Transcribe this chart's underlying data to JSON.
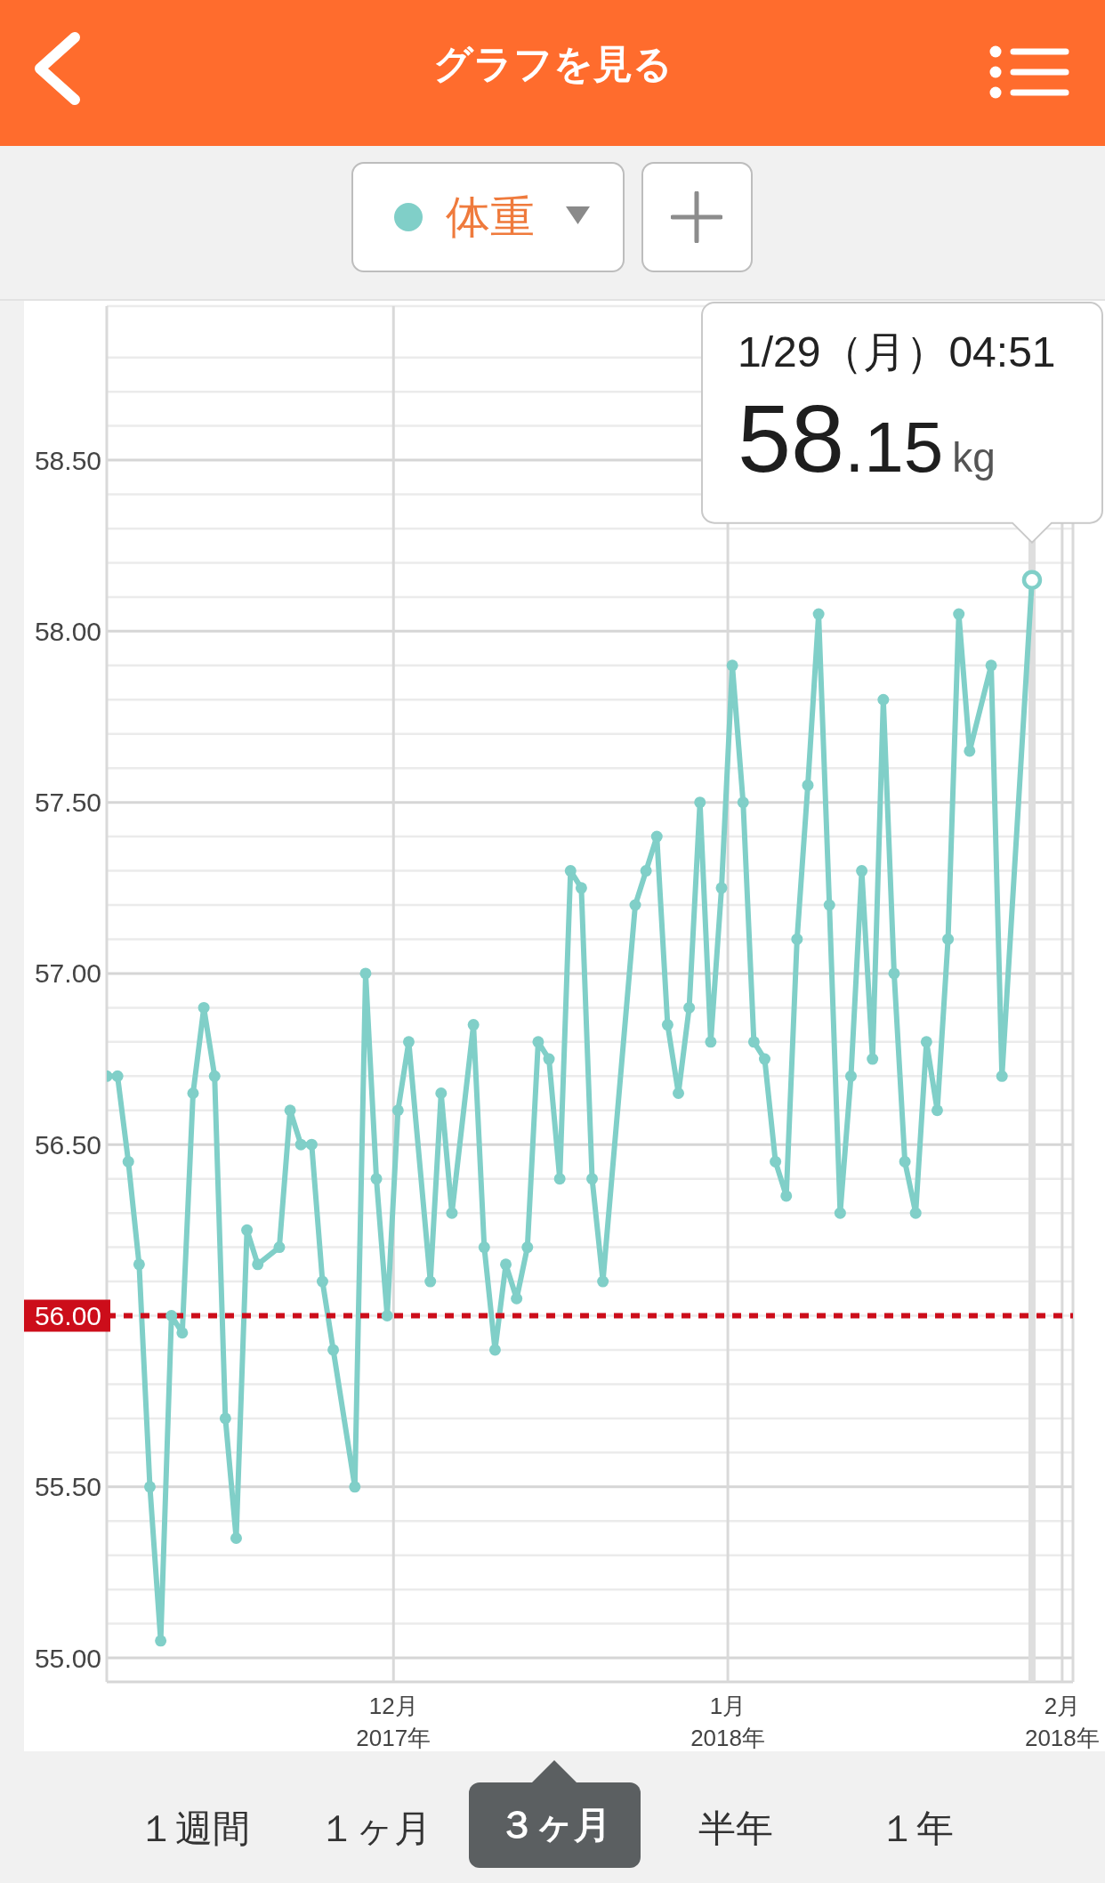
{
  "chart_data": {
    "type": "line",
    "title": "グラフを見る",
    "x": [
      "2017-11-04T10:00",
      "2017-11-05T10:00",
      "2017-11-06T10:00",
      "2017-11-07T10:00",
      "2017-11-08T10:00",
      "2017-11-09T10:00",
      "2017-11-10T10:00",
      "2017-11-11T10:00",
      "2017-11-12T10:00",
      "2017-11-13T10:00",
      "2017-11-14T10:00",
      "2017-11-15T10:00",
      "2017-11-16T10:00",
      "2017-11-17T10:00",
      "2017-11-18T10:00",
      "2017-11-20T10:00",
      "2017-11-21T10:00",
      "2017-11-22T10:00",
      "2017-11-23T10:00",
      "2017-11-24T10:00",
      "2017-11-25T10:00",
      "2017-11-27T10:00",
      "2017-11-28T10:00",
      "2017-11-29T10:00",
      "2017-11-30T10:00",
      "2017-12-01T10:00",
      "2017-12-02T10:00",
      "2017-12-04T10:00",
      "2017-12-05T10:00",
      "2017-12-06T10:00",
      "2017-12-08T10:00",
      "2017-12-09T10:00",
      "2017-12-10T10:00",
      "2017-12-11T10:00",
      "2017-12-12T10:00",
      "2017-12-13T10:00",
      "2017-12-14T10:00",
      "2017-12-15T10:00",
      "2017-12-16T10:00",
      "2017-12-17T10:00",
      "2017-12-18T10:00",
      "2017-12-19T10:00",
      "2017-12-20T10:00",
      "2017-12-23T10:00",
      "2017-12-24T10:00",
      "2017-12-25T10:00",
      "2017-12-26T10:00",
      "2017-12-27T10:00",
      "2017-12-28T10:00",
      "2017-12-29T10:00",
      "2017-12-30T10:00",
      "2017-12-31T10:00",
      "2018-01-01T10:00",
      "2018-01-02T10:00",
      "2018-01-03T10:00",
      "2018-01-04T10:00",
      "2018-01-05T10:00",
      "2018-01-06T10:00",
      "2018-01-07T10:00",
      "2018-01-08T10:00",
      "2018-01-09T10:00",
      "2018-01-10T10:00",
      "2018-01-11T10:00",
      "2018-01-12T10:00",
      "2018-01-13T10:00",
      "2018-01-14T10:00",
      "2018-01-15T10:00",
      "2018-01-16T10:00",
      "2018-01-17T10:00",
      "2018-01-18T10:00",
      "2018-01-19T10:00",
      "2018-01-20T10:00",
      "2018-01-21T10:00",
      "2018-01-22T10:00",
      "2018-01-23T10:00",
      "2018-01-25T10:00",
      "2018-01-26T10:00",
      "2018-01-29T04:51"
    ],
    "series": [
      {
        "name": "体重",
        "color": "#80cfc8",
        "values": [
          56.7,
          56.7,
          56.45,
          56.15,
          55.5,
          55.05,
          56.0,
          55.95,
          56.65,
          56.9,
          56.7,
          55.7,
          55.35,
          56.25,
          56.15,
          56.2,
          56.6,
          56.5,
          56.5,
          56.1,
          55.9,
          55.5,
          57.0,
          56.4,
          56.0,
          56.6,
          56.8,
          56.1,
          56.65,
          56.3,
          56.85,
          56.2,
          55.9,
          56.15,
          56.05,
          56.2,
          56.8,
          56.75,
          56.4,
          57.3,
          57.25,
          56.4,
          56.1,
          57.2,
          57.3,
          57.4,
          56.85,
          56.65,
          56.9,
          57.5,
          56.8,
          57.25,
          57.9,
          57.5,
          56.8,
          56.75,
          56.45,
          56.35,
          57.1,
          57.55,
          58.05,
          57.2,
          56.3,
          56.7,
          57.3,
          56.75,
          57.8,
          57.0,
          56.45,
          56.3,
          56.8,
          56.6,
          57.1,
          58.05,
          57.65,
          57.9,
          56.7,
          58.15
        ]
      }
    ],
    "xlim": [
      "2017-11-04T10:00",
      "2018-02-02"
    ],
    "xticks": [
      {
        "value": "2017-12-01",
        "label": "12月\n2017年"
      },
      {
        "value": "2018-01-01",
        "label": "1月\n2018年"
      },
      {
        "value": "2018-02-01",
        "label": "2月\n2018年"
      }
    ],
    "ylim": [
      54.93,
      58.95
    ],
    "yticks": [
      {
        "value": 55,
        "label": "55.00"
      },
      {
        "value": 55.1,
        "label": null
      },
      {
        "value": 55.2,
        "label": null
      },
      {
        "value": 55.3,
        "label": null
      },
      {
        "value": 55.4,
        "label": null
      },
      {
        "value": 55.5,
        "label": "55.50"
      },
      {
        "value": 55.6,
        "label": null
      },
      {
        "value": 55.7,
        "label": null
      },
      {
        "value": 55.8,
        "label": null
      },
      {
        "value": 55.9,
        "label": null
      },
      {
        "value": 56,
        "label": null
      },
      {
        "value": 56.1,
        "label": null
      },
      {
        "value": 56.2,
        "label": null
      },
      {
        "value": 56.3,
        "label": null
      },
      {
        "value": 56.4,
        "label": null
      },
      {
        "value": 56.5,
        "label": "56.50"
      },
      {
        "value": 56.6,
        "label": null
      },
      {
        "value": 56.7,
        "label": null
      },
      {
        "value": 56.8,
        "label": null
      },
      {
        "value": 56.9,
        "label": null
      },
      {
        "value": 57,
        "label": "57.00"
      },
      {
        "value": 57.1,
        "label": null
      },
      {
        "value": 57.2,
        "label": null
      },
      {
        "value": 57.3,
        "label": null
      },
      {
        "value": 57.4,
        "label": null
      },
      {
        "value": 57.5,
        "label": "57.50"
      },
      {
        "value": 57.6,
        "label": null
      },
      {
        "value": 57.7,
        "label": null
      },
      {
        "value": 57.8,
        "label": null
      },
      {
        "value": 57.9,
        "label": null
      },
      {
        "value": 58,
        "label": "58.00"
      },
      {
        "value": 58.1,
        "label": null
      },
      {
        "value": 58.2,
        "label": null
      },
      {
        "value": 58.3,
        "label": null
      },
      {
        "value": 58.4,
        "label": null
      },
      {
        "value": 58.5,
        "label": "58.50"
      },
      {
        "value": 58.6,
        "label": null
      },
      {
        "value": 58.7,
        "label": null
      },
      {
        "value": 58.8,
        "label": null
      }
    ],
    "grid": true,
    "legend": "top",
    "marker": "circle",
    "line_style": "solid",
    "ref_lines": [
      {
        "axis": "x",
        "value": "2018-01-29T04:51",
        "color": "#dedede"
      },
      {
        "axis": "y",
        "value": 56,
        "label": "56.00",
        "color": "#cc0d1a",
        "line_style": "dotted"
      }
    ],
    "annotations": [
      {
        "text": "1/29（月）04:51\n58.15kg",
        "x": "2018-01-29T04:51",
        "y": 58.15
      },
      "１週間",
      "１ヶ月",
      "３ヶ月",
      "半年",
      "１年"
    ]
  }
}
